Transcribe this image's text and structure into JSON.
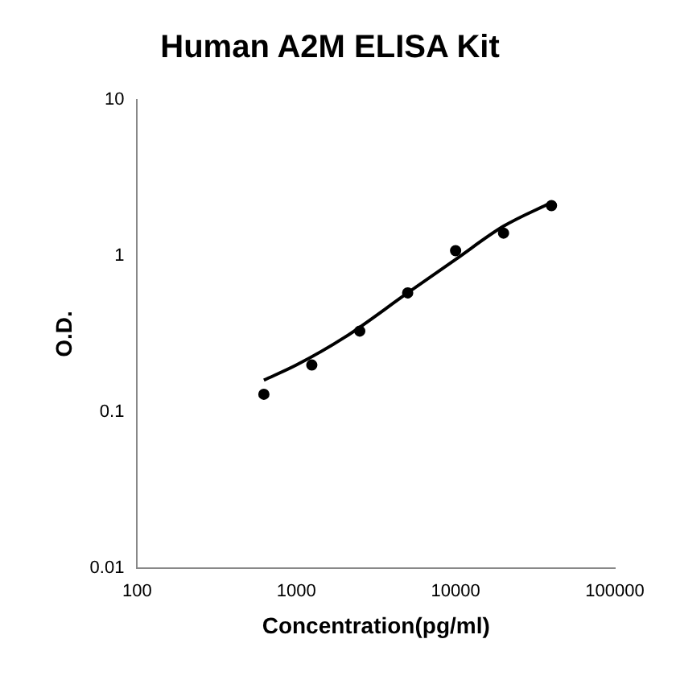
{
  "chart_data": {
    "type": "scatter",
    "title": "Human A2M ELISA Kit",
    "xlabel": "Concentration(pg/ml)",
    "ylabel": "O.D.",
    "log": "xy",
    "grid": false,
    "legend": false,
    "xlim": [
      100,
      100000
    ],
    "xticks": [
      100,
      1000,
      10000,
      100000
    ],
    "ylim": [
      0.01,
      10
    ],
    "yticks": [
      0.01,
      0.1,
      1,
      10
    ],
    "series": [
      {
        "marker": "circle",
        "color": "#000000",
        "x": [
          625,
          1250,
          2500,
          5000,
          10000,
          20000,
          40000
        ],
        "values": [
          0.13,
          0.2,
          0.33,
          0.58,
          1.08,
          1.4,
          2.1
        ]
      },
      {
        "type": "line",
        "marker": "none",
        "color": "#000000",
        "x": [
          625,
          1000,
          2000,
          5000,
          10000,
          20000,
          40000
        ],
        "values": [
          0.16,
          0.2,
          0.3,
          0.58,
          0.95,
          1.55,
          2.2
        ]
      }
    ]
  }
}
